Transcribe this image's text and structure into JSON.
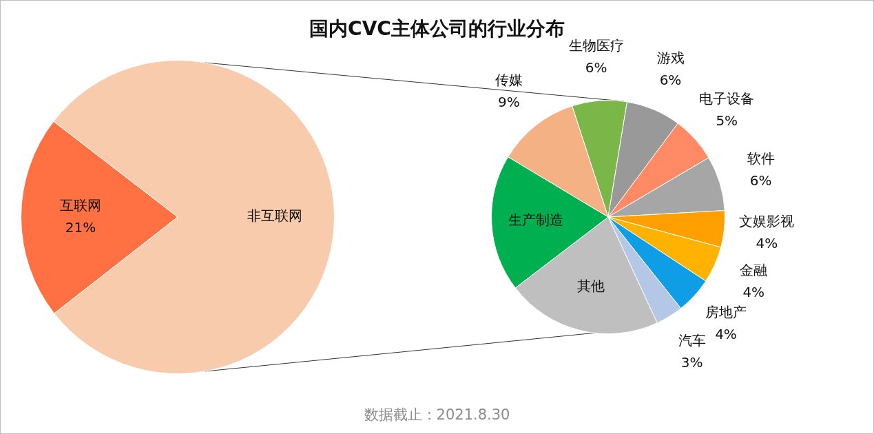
{
  "chart_data": [
    {
      "type": "pie",
      "title": "国内CVC主体公司的行业分布",
      "categories": [
        "互联网",
        "非互联网"
      ],
      "values": [
        21,
        79
      ],
      "colors": [
        "#ff7043",
        "#f8cbad"
      ],
      "value_labels": [
        "21%",
        null
      ]
    },
    {
      "type": "pie",
      "categories": [
        "生物医疗",
        "游戏",
        "电子设备",
        "软件",
        "文娱影视",
        "金融",
        "房地产",
        "汽车",
        "其他",
        "生产制造",
        "传媒"
      ],
      "values": [
        6,
        6,
        5,
        6,
        4,
        4,
        4,
        3,
        17,
        15,
        9
      ],
      "colors": [
        "#7ab648",
        "#999999",
        "#ff8a65",
        "#a6a6a6",
        "#ffa000",
        "#ffb300",
        "#0f9ee5",
        "#b4c7e7",
        "#bfbfbf",
        "#00b050",
        "#f4b183"
      ],
      "value_labels": [
        "6%",
        "6%",
        "5%",
        "6%",
        "4%",
        "4%",
        "4%",
        "3%",
        null,
        null,
        "9%"
      ],
      "annotations": [
        "数据截止：2021.8.30"
      ]
    }
  ]
}
